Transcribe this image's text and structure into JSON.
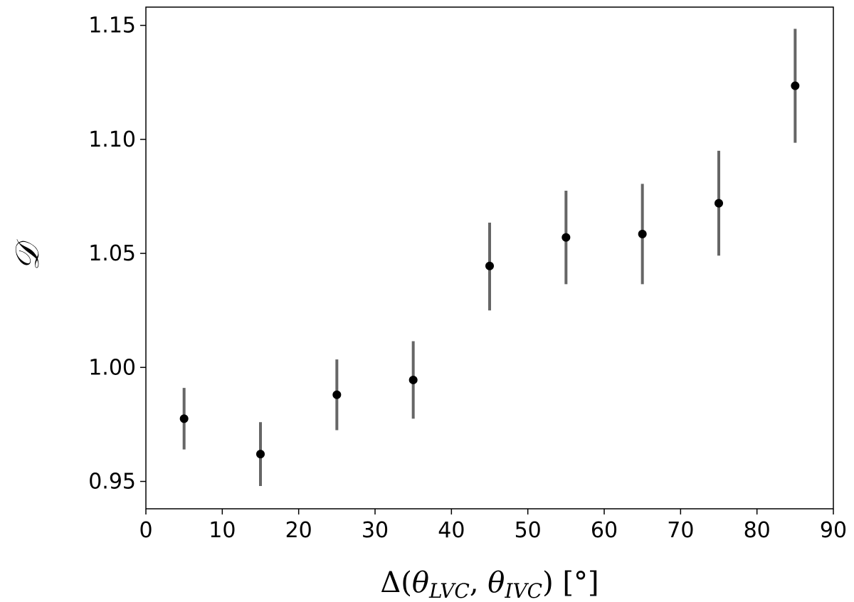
{
  "chart_data": {
    "type": "scatter",
    "title": "",
    "xlabel": "Δ(θ_LVC, θ_IVC) [°]",
    "ylabel": "𝒟",
    "xlim": [
      0,
      90
    ],
    "ylim": [
      0.938,
      1.158
    ],
    "x_ticks": [
      "0",
      "10",
      "20",
      "30",
      "40",
      "50",
      "60",
      "70",
      "80",
      "90"
    ],
    "y_ticks": [
      "0.95",
      "1.00",
      "1.05",
      "1.10",
      "1.15"
    ],
    "grid": false,
    "legend": "none",
    "marker_color": "#000000",
    "errorbar_color": "#666666",
    "points": [
      {
        "x": 5,
        "y": 0.9775,
        "ylow": 0.964,
        "yhigh": 0.991
      },
      {
        "x": 15,
        "y": 0.962,
        "ylow": 0.948,
        "yhigh": 0.976
      },
      {
        "x": 25,
        "y": 0.988,
        "ylow": 0.9725,
        "yhigh": 1.0035
      },
      {
        "x": 35,
        "y": 0.9945,
        "ylow": 0.9775,
        "yhigh": 1.0115
      },
      {
        "x": 45,
        "y": 1.0445,
        "ylow": 1.025,
        "yhigh": 1.0635
      },
      {
        "x": 55,
        "y": 1.057,
        "ylow": 1.0365,
        "yhigh": 1.0775
      },
      {
        "x": 65,
        "y": 1.0585,
        "ylow": 1.0365,
        "yhigh": 1.0805
      },
      {
        "x": 75,
        "y": 1.072,
        "ylow": 1.049,
        "yhigh": 1.095
      },
      {
        "x": 85,
        "y": 1.1235,
        "ylow": 1.0985,
        "yhigh": 1.1485
      }
    ]
  }
}
